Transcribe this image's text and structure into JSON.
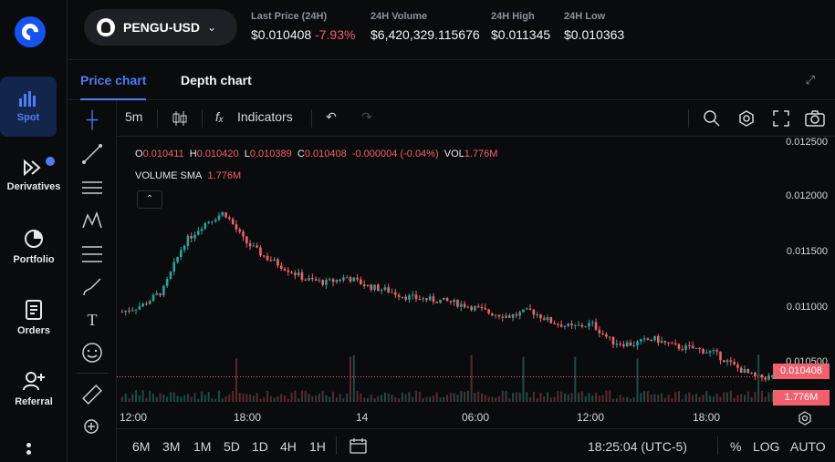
{
  "sidebar": {
    "logo": "coinbase-logo",
    "items": [
      {
        "label": "Spot",
        "icon": "bar-chart-icon",
        "active": true
      },
      {
        "label": "Derivatives",
        "icon": "derivatives-icon",
        "badge": true
      },
      {
        "label": "Portfolio",
        "icon": "pie-chart-icon"
      },
      {
        "label": "Orders",
        "icon": "document-list-icon"
      },
      {
        "label": "Referral",
        "icon": "add-user-icon"
      }
    ]
  },
  "header": {
    "pair": "PENGU-USD",
    "stats": [
      {
        "label": "Last Price (24H)",
        "value": "$0.010408",
        "change": "-7.93%"
      },
      {
        "label": "24H Volume",
        "value": "$6,420,329.115676"
      },
      {
        "label": "24H High",
        "value": "$0.011345"
      },
      {
        "label": "24H Low",
        "value": "$0.010363"
      }
    ]
  },
  "tabs": {
    "price": "Price chart",
    "depth": "Depth chart"
  },
  "toolbar": {
    "interval": "5m",
    "indicators": "Indicators"
  },
  "legend": {
    "o_label": "O",
    "o_value": "0.010411",
    "h_label": "H",
    "h_value": "0.010420",
    "l_label": "L",
    "l_value": "0.010389",
    "c_label": "C",
    "c_value": "0.010408",
    "change": "-0.000004 (-0.04%)",
    "vol_label": "VOL",
    "vol_value": "1.776M",
    "sma_label": "VOLUME SMA",
    "sma_value": "1.776M"
  },
  "chart_data": {
    "type": "candlestick",
    "y_ticks": [
      "0.012500",
      "0.012000",
      "0.011500",
      "0.011000",
      "0.010500"
    ],
    "ylim": [
      0.0102,
      0.0125
    ],
    "x_ticks": [
      "12:00",
      "18:00",
      "14",
      "06:00",
      "12:00",
      "18:00"
    ],
    "last_price": "0.010408",
    "last_volume": "1.776M",
    "close_path": [
      0.01099,
      0.01105,
      0.01118,
      0.0116,
      0.01178,
      0.01188,
      0.01162,
      0.01148,
      0.01138,
      0.01128,
      0.01125,
      0.0113,
      0.01122,
      0.01118,
      0.01112,
      0.0111,
      0.01108,
      0.01104,
      0.01098,
      0.01095,
      0.011,
      0.0109,
      0.01085,
      0.01088,
      0.01072,
      0.0107,
      0.01075,
      0.01068,
      0.01066,
      0.01062,
      0.0105,
      0.0104,
      0.01041
    ],
    "colors": {
      "up": "#26a69a",
      "down": "#f0616d"
    }
  },
  "bottombar": {
    "ranges": [
      "6M",
      "3M",
      "1M",
      "5D",
      "1D",
      "4H",
      "1H"
    ],
    "time": "18:25:04 (UTC-5)",
    "percent": "%",
    "log": "LOG",
    "auto": "AUTO"
  }
}
